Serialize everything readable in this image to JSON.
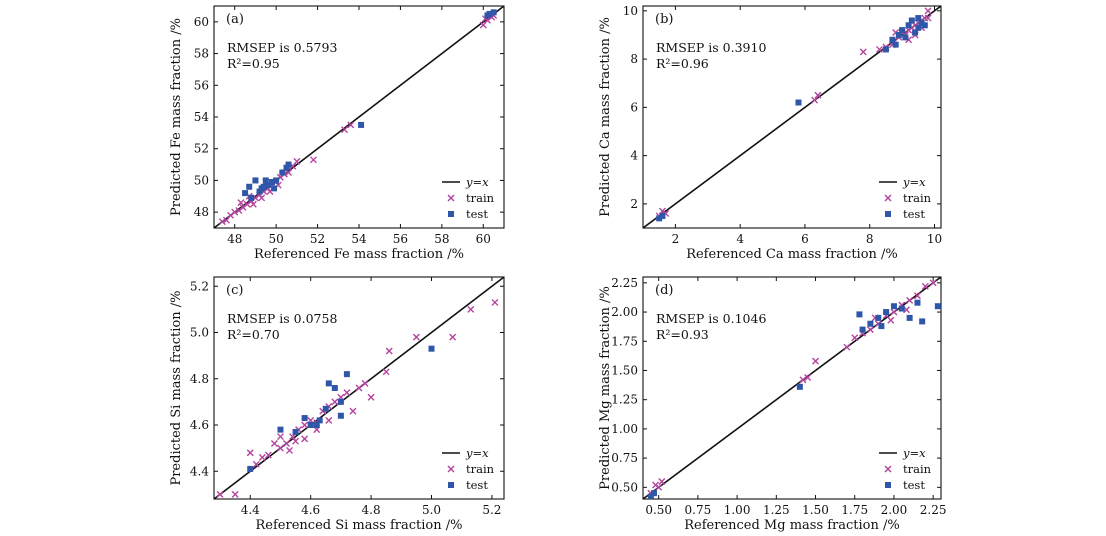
{
  "colors": {
    "train": "#b4449f",
    "test": "#2f56a8",
    "line": "#111111",
    "axis": "#111111"
  },
  "legend": {
    "line": "y=x",
    "train": "train",
    "test": "test"
  },
  "chart_data": [
    {
      "type": "scatter",
      "panel_label": "(a)",
      "xlabel": "Referenced Fe mass fraction /%",
      "ylabel": "Predicted Fe mass fraction /%",
      "xlim": [
        47.0,
        61.0
      ],
      "ylim": [
        47.0,
        61.0
      ],
      "xticks": [
        48,
        50,
        52,
        54,
        56,
        58,
        60
      ],
      "yticks": [
        48,
        50,
        52,
        54,
        56,
        58,
        60
      ],
      "tick_decimals": 0,
      "annotation": {
        "rmsep": "RMSEP is 0.5793",
        "r2": "R²=0.95"
      },
      "legend_position": "lower-right",
      "series": [
        {
          "name": "train",
          "marker": "x",
          "points": [
            [
              47.4,
              47.4
            ],
            [
              47.6,
              47.5
            ],
            [
              47.8,
              47.8
            ],
            [
              48.0,
              48.0
            ],
            [
              48.2,
              48.1
            ],
            [
              48.4,
              48.3
            ],
            [
              48.6,
              48.5
            ],
            [
              48.8,
              48.7
            ],
            [
              49.0,
              48.9
            ],
            [
              49.2,
              49.1
            ],
            [
              49.4,
              49.3
            ],
            [
              49.6,
              49.5
            ],
            [
              49.8,
              49.7
            ],
            [
              50.0,
              49.9
            ],
            [
              50.2,
              50.2
            ],
            [
              50.4,
              50.4
            ],
            [
              50.6,
              50.5
            ],
            [
              50.8,
              50.9
            ],
            [
              48.9,
              48.5
            ],
            [
              49.3,
              48.9
            ],
            [
              49.7,
              49.3
            ],
            [
              50.1,
              49.7
            ],
            [
              48.3,
              48.6
            ],
            [
              48.7,
              49.0
            ],
            [
              49.5,
              49.9
            ],
            [
              51.0,
              51.2
            ],
            [
              51.8,
              51.3
            ],
            [
              53.3,
              53.2
            ],
            [
              53.6,
              53.5
            ],
            [
              60.0,
              59.8
            ],
            [
              60.2,
              60.1
            ],
            [
              60.4,
              60.3
            ],
            [
              60.5,
              60.4
            ],
            [
              60.1,
              60.2
            ]
          ]
        },
        {
          "name": "test",
          "marker": "square",
          "points": [
            [
              48.5,
              49.2
            ],
            [
              48.7,
              49.6
            ],
            [
              49.0,
              50.0
            ],
            [
              49.3,
              49.5
            ],
            [
              49.5,
              50.0
            ],
            [
              49.8,
              49.9
            ],
            [
              50.0,
              50.0
            ],
            [
              49.2,
              49.3
            ],
            [
              48.8,
              48.9
            ],
            [
              49.6,
              49.7
            ],
            [
              50.3,
              50.5
            ],
            [
              50.5,
              50.8
            ],
            [
              50.6,
              51.0
            ],
            [
              49.4,
              49.6
            ],
            [
              49.9,
              49.5
            ],
            [
              54.1,
              53.5
            ],
            [
              60.3,
              60.5
            ],
            [
              60.5,
              60.6
            ],
            [
              60.2,
              60.4
            ]
          ]
        }
      ]
    },
    {
      "type": "scatter",
      "panel_label": "(b)",
      "xlabel": "Referenced Ca mass fraction /%",
      "ylabel": "Predicted Ca mass fraction /%",
      "xlim": [
        1.0,
        10.2
      ],
      "ylim": [
        1.0,
        10.2
      ],
      "xticks": [
        2,
        4,
        6,
        8,
        10
      ],
      "yticks": [
        2,
        4,
        6,
        8,
        10
      ],
      "tick_decimals": 0,
      "annotation": {
        "rmsep": "RMSEP is 0.3910",
        "r2": "R²=0.96"
      },
      "legend_position": "lower-right",
      "series": [
        {
          "name": "train",
          "marker": "x",
          "points": [
            [
              1.5,
              1.5
            ],
            [
              1.6,
              1.7
            ],
            [
              1.7,
              1.6
            ],
            [
              6.3,
              6.3
            ],
            [
              6.4,
              6.5
            ],
            [
              7.8,
              8.3
            ],
            [
              8.3,
              8.4
            ],
            [
              8.5,
              8.5
            ],
            [
              8.7,
              8.6
            ],
            [
              8.9,
              8.9
            ],
            [
              9.0,
              9.1
            ],
            [
              9.1,
              9.0
            ],
            [
              9.2,
              9.2
            ],
            [
              9.3,
              9.3
            ],
            [
              9.4,
              9.4
            ],
            [
              9.5,
              9.5
            ],
            [
              9.6,
              9.6
            ],
            [
              9.7,
              9.7
            ],
            [
              9.8,
              10.0
            ],
            [
              9.6,
              9.3
            ],
            [
              9.4,
              9.0
            ],
            [
              8.8,
              9.1
            ],
            [
              9.2,
              8.8
            ],
            [
              9.8,
              9.7
            ]
          ]
        },
        {
          "name": "test",
          "marker": "square",
          "points": [
            [
              1.5,
              1.4
            ],
            [
              1.6,
              1.5
            ],
            [
              5.8,
              6.2
            ],
            [
              8.5,
              8.4
            ],
            [
              8.7,
              8.8
            ],
            [
              8.9,
              9.0
            ],
            [
              9.0,
              9.2
            ],
            [
              9.2,
              9.4
            ],
            [
              9.3,
              9.6
            ],
            [
              9.5,
              9.7
            ],
            [
              9.6,
              9.5
            ],
            [
              9.4,
              9.1
            ],
            [
              9.1,
              8.9
            ],
            [
              8.8,
              8.6
            ],
            [
              9.5,
              9.3
            ],
            [
              9.7,
              9.4
            ]
          ]
        }
      ]
    },
    {
      "type": "scatter",
      "panel_label": "(c)",
      "xlabel": "Referenced Si mass fraction /%",
      "ylabel": "Predicted Si mass fraction /%",
      "xlim": [
        4.28,
        5.24
      ],
      "ylim": [
        4.28,
        5.24
      ],
      "xticks": [
        4.4,
        4.6,
        4.8,
        5.0,
        5.2
      ],
      "yticks": [
        4.4,
        4.6,
        4.8,
        5.0,
        5.2
      ],
      "tick_decimals": 1,
      "annotation": {
        "rmsep": "RMSEP is 0.0758",
        "r2": "R²=0.70"
      },
      "legend_position": "lower-right",
      "series": [
        {
          "name": "train",
          "marker": "x",
          "points": [
            [
              4.3,
              4.3
            ],
            [
              4.35,
              4.3
            ],
            [
              4.4,
              4.48
            ],
            [
              4.42,
              4.43
            ],
            [
              4.44,
              4.46
            ],
            [
              4.46,
              4.47
            ],
            [
              4.48,
              4.52
            ],
            [
              4.5,
              4.5
            ],
            [
              4.52,
              4.52
            ],
            [
              4.54,
              4.55
            ],
            [
              4.55,
              4.53
            ],
            [
              4.56,
              4.58
            ],
            [
              4.58,
              4.6
            ],
            [
              4.6,
              4.62
            ],
            [
              4.62,
              4.61
            ],
            [
              4.64,
              4.66
            ],
            [
              4.66,
              4.68
            ],
            [
              4.68,
              4.7
            ],
            [
              4.7,
              4.72
            ],
            [
              4.72,
              4.74
            ],
            [
              4.74,
              4.66
            ],
            [
              4.76,
              4.76
            ],
            [
              4.78,
              4.78
            ],
            [
              4.8,
              4.72
            ],
            [
              4.85,
              4.83
            ],
            [
              4.86,
              4.92
            ],
            [
              4.95,
              4.98
            ],
            [
              5.07,
              4.98
            ],
            [
              5.13,
              5.1
            ],
            [
              5.21,
              5.13
            ],
            [
              4.5,
              4.55
            ],
            [
              4.58,
              4.54
            ],
            [
              4.62,
              4.58
            ],
            [
              4.66,
              4.62
            ],
            [
              4.53,
              4.49
            ]
          ]
        },
        {
          "name": "test",
          "marker": "square",
          "points": [
            [
              4.4,
              4.41
            ],
            [
              4.5,
              4.58
            ],
            [
              4.55,
              4.57
            ],
            [
              4.58,
              4.63
            ],
            [
              4.6,
              4.6
            ],
            [
              4.63,
              4.62
            ],
            [
              4.65,
              4.67
            ],
            [
              4.66,
              4.78
            ],
            [
              4.68,
              4.76
            ],
            [
              4.7,
              4.7
            ],
            [
              4.72,
              4.82
            ],
            [
              4.7,
              4.64
            ],
            [
              5.0,
              4.93
            ],
            [
              4.62,
              4.6
            ]
          ]
        }
      ]
    },
    {
      "type": "scatter",
      "panel_label": "(d)",
      "xlabel": "Referenced Mg mass fraction /%",
      "ylabel": "Predicted Mg mass fraction /%",
      "xlim": [
        0.4,
        2.3
      ],
      "ylim": [
        0.4,
        2.3
      ],
      "xticks": [
        0.5,
        0.75,
        1.0,
        1.25,
        1.5,
        1.75,
        2.0,
        2.25
      ],
      "yticks": [
        0.5,
        0.75,
        1.0,
        1.25,
        1.5,
        1.75,
        2.0,
        2.25
      ],
      "tick_decimals": 2,
      "annotation": {
        "rmsep": "RMSEP is 0.1046",
        "r2": "R²=0.93"
      },
      "legend_position": "lower-right",
      "series": [
        {
          "name": "train",
          "marker": "x",
          "points": [
            [
              0.45,
              0.45
            ],
            [
              0.48,
              0.52
            ],
            [
              0.5,
              0.5
            ],
            [
              0.52,
              0.55
            ],
            [
              1.42,
              1.42
            ],
            [
              1.45,
              1.44
            ],
            [
              1.5,
              1.58
            ],
            [
              1.7,
              1.7
            ],
            [
              1.75,
              1.78
            ],
            [
              1.8,
              1.82
            ],
            [
              1.85,
              1.85
            ],
            [
              1.9,
              1.9
            ],
            [
              1.95,
              1.97
            ],
            [
              2.0,
              2.0
            ],
            [
              2.05,
              2.06
            ],
            [
              2.1,
              2.1
            ],
            [
              2.15,
              2.14
            ],
            [
              2.2,
              2.22
            ],
            [
              2.25,
              2.25
            ],
            [
              1.88,
              1.95
            ],
            [
              1.98,
              1.93
            ],
            [
              2.08,
              2.02
            ]
          ]
        },
        {
          "name": "test",
          "marker": "square",
          "points": [
            [
              0.45,
              0.42
            ],
            [
              0.47,
              0.45
            ],
            [
              1.4,
              1.36
            ],
            [
              1.78,
              1.98
            ],
            [
              1.8,
              1.85
            ],
            [
              1.85,
              1.9
            ],
            [
              1.9,
              1.95
            ],
            [
              1.95,
              2.0
            ],
            [
              2.0,
              2.05
            ],
            [
              2.05,
              2.03
            ],
            [
              2.1,
              1.95
            ],
            [
              2.15,
              2.08
            ],
            [
              2.18,
              1.92
            ],
            [
              2.28,
              2.05
            ],
            [
              1.92,
              1.88
            ]
          ]
        }
      ]
    }
  ]
}
